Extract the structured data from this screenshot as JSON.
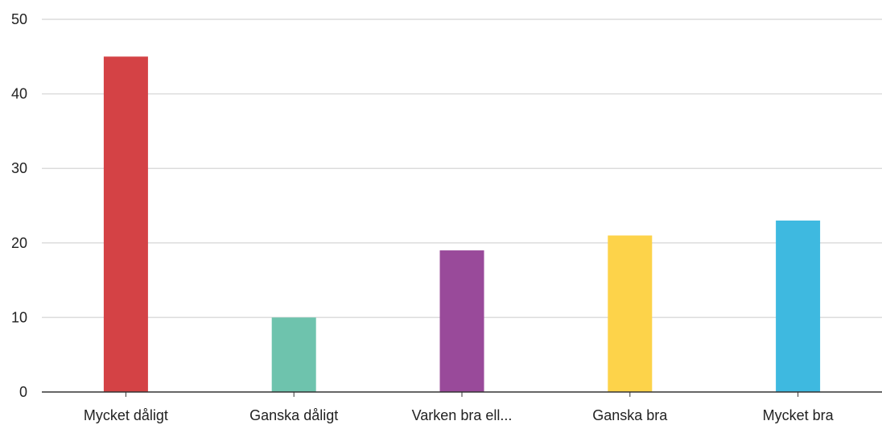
{
  "chart_data": {
    "type": "bar",
    "title": "",
    "xlabel": "",
    "ylabel": "",
    "categories": [
      "Mycket dåligt",
      "Ganska dåligt",
      "Varken bra ell...",
      "Ganska bra",
      "Mycket bra"
    ],
    "values": [
      45,
      10,
      19,
      21,
      23
    ],
    "colors": [
      "#D44245",
      "#6EC3AD",
      "#994A9A",
      "#FDD34A",
      "#3EB9E0"
    ],
    "ylim": [
      0,
      50
    ],
    "yticks": [
      0,
      10,
      20,
      30,
      40,
      50
    ],
    "grid": true,
    "legend": "none"
  }
}
